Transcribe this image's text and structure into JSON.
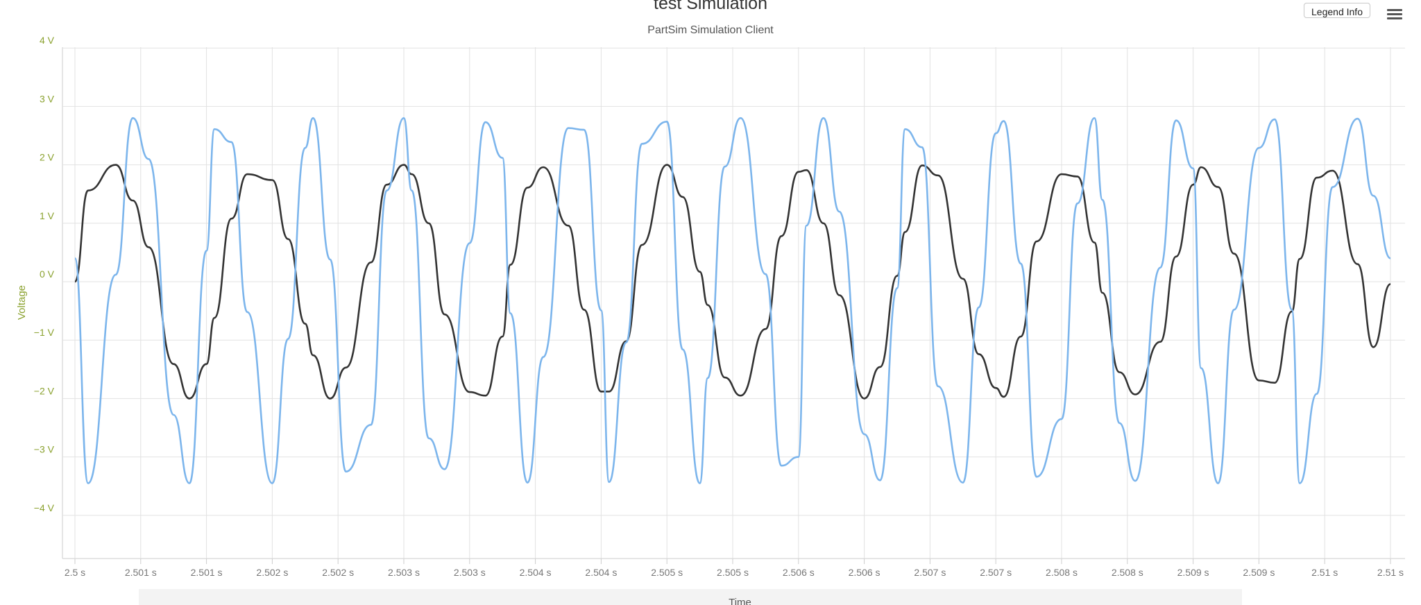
{
  "header": {
    "legend_button_label": "Legend Info",
    "menu_icon": "hamburger-menu-icon"
  },
  "chart_data": {
    "type": "line",
    "title": "test Simulation",
    "subtitle": "PartSim Simulation Client",
    "xlabel": "Time",
    "ylabel": "Voltage",
    "xlim": [
      2.5,
      2.51
    ],
    "ylim": [
      -4.6,
      4
    ],
    "grid": true,
    "y_ticks": [
      {
        "value": 4,
        "label": "4 V"
      },
      {
        "value": 3,
        "label": "3 V"
      },
      {
        "value": 2,
        "label": "2 V"
      },
      {
        "value": 1,
        "label": "1 V"
      },
      {
        "value": 0,
        "label": "0 V"
      },
      {
        "value": -1,
        "label": "−1 V"
      },
      {
        "value": -2,
        "label": "−2 V"
      },
      {
        "value": -3,
        "label": "−3 V"
      },
      {
        "value": -4,
        "label": "−4 V"
      }
    ],
    "x_ticks": [
      {
        "value": 2.5,
        "label": "2.5 s"
      },
      {
        "value": 2.5005,
        "label": "2.501 s"
      },
      {
        "value": 2.501,
        "label": "2.501 s"
      },
      {
        "value": 2.5015,
        "label": "2.502 s"
      },
      {
        "value": 2.502,
        "label": "2.502 s"
      },
      {
        "value": 2.5025,
        "label": "2.503 s"
      },
      {
        "value": 2.503,
        "label": "2.503 s"
      },
      {
        "value": 2.5035,
        "label": "2.504 s"
      },
      {
        "value": 2.504,
        "label": "2.504 s"
      },
      {
        "value": 2.5045,
        "label": "2.505 s"
      },
      {
        "value": 2.505,
        "label": "2.505 s"
      },
      {
        "value": 2.5055,
        "label": "2.506 s"
      },
      {
        "value": 2.506,
        "label": "2.506 s"
      },
      {
        "value": 2.5065,
        "label": "2.507 s"
      },
      {
        "value": 2.507,
        "label": "2.507 s"
      },
      {
        "value": 2.5075,
        "label": "2.508 s"
      },
      {
        "value": 2.508,
        "label": "2.508 s"
      },
      {
        "value": 2.5085,
        "label": "2.509 s"
      },
      {
        "value": 2.509,
        "label": "2.509 s"
      },
      {
        "value": 2.5095,
        "label": "2.51 s"
      },
      {
        "value": 2.51,
        "label": "2.51 s"
      }
    ],
    "series": [
      {
        "color": "#333333",
        "x": [
          2.5,
          2.5001,
          2.50031,
          2.50044,
          2.50056,
          2.50075,
          2.50087,
          2.501,
          2.50106,
          2.50119,
          2.50131,
          2.5015,
          2.50162,
          2.50175,
          2.50181,
          2.50194,
          2.50206,
          2.50225,
          2.50237,
          2.5025,
          2.50256,
          2.50269,
          2.50281,
          2.503,
          2.50312,
          2.50325,
          2.50331,
          2.50344,
          2.50356,
          2.50375,
          2.50387,
          2.504,
          2.50406,
          2.50419,
          2.50431,
          2.5045,
          2.50462,
          2.50475,
          2.50481,
          2.50494,
          2.50506,
          2.50525,
          2.50537,
          2.5055,
          2.50556,
          2.50569,
          2.50581,
          2.506,
          2.50612,
          2.50625,
          2.50631,
          2.50644,
          2.50656,
          2.50675,
          2.50687,
          2.507,
          2.50706,
          2.50719,
          2.50731,
          2.5075,
          2.50762,
          2.50775,
          2.50781,
          2.50794,
          2.50806,
          2.50825,
          2.50837,
          2.5085,
          2.50856,
          2.50869,
          2.50881,
          2.509,
          2.50912,
          2.50925,
          2.50931,
          2.50944,
          2.50956,
          2.50975,
          2.50987,
          2.51
        ],
        "y": [
          0,
          1.56,
          2,
          1.39,
          0.59,
          -1.41,
          -2,
          -1.41,
          -0.62,
          1.08,
          1.84,
          1.74,
          0.73,
          -0.72,
          -1.26,
          -2,
          -1.47,
          0.33,
          1.66,
          2,
          1.84,
          1,
          -0.56,
          -1.89,
          -1.95,
          -0.94,
          0.29,
          1.61,
          1.96,
          0.96,
          -0.48,
          -1.88,
          -1.88,
          -1.02,
          0.63,
          2,
          1.45,
          0.17,
          -0.4,
          -1.64,
          -1.95,
          -0.81,
          0.78,
          1.88,
          1.91,
          1,
          -0.23,
          -2,
          -1.46,
          0.1,
          0.85,
          1.99,
          1.82,
          0.05,
          -1.24,
          -1.82,
          -1.97,
          -0.94,
          0.69,
          1.84,
          1.8,
          0.67,
          -0.19,
          -1.55,
          -1.93,
          -1.03,
          0.43,
          1.66,
          1.96,
          1.62,
          0.48,
          -1.69,
          -1.73,
          -0.51,
          0.39,
          1.78,
          1.9,
          0.3,
          -1.12,
          -0.04
        ]
      },
      {
        "color": "#7cb5ec",
        "x": [
          2.5,
          2.5001,
          2.50031,
          2.50044,
          2.50056,
          2.50075,
          2.50087,
          2.501,
          2.50106,
          2.50119,
          2.50131,
          2.5015,
          2.50162,
          2.50175,
          2.50181,
          2.50194,
          2.50206,
          2.50225,
          2.50237,
          2.5025,
          2.50256,
          2.50269,
          2.50281,
          2.503,
          2.50312,
          2.50325,
          2.50331,
          2.50344,
          2.50356,
          2.50375,
          2.50387,
          2.504,
          2.50406,
          2.50419,
          2.50431,
          2.5045,
          2.50462,
          2.50475,
          2.50481,
          2.50494,
          2.50506,
          2.50525,
          2.50537,
          2.5055,
          2.50556,
          2.50569,
          2.50581,
          2.506,
          2.50612,
          2.50625,
          2.50631,
          2.50644,
          2.50656,
          2.50675,
          2.50687,
          2.507,
          2.50706,
          2.50719,
          2.50731,
          2.5075,
          2.50762,
          2.50775,
          2.50781,
          2.50794,
          2.50806,
          2.50825,
          2.50837,
          2.5085,
          2.50856,
          2.50869,
          2.50881,
          2.509,
          2.50912,
          2.50925,
          2.50931,
          2.50944,
          2.50956,
          2.50975,
          2.50987,
          2.51
        ],
        "y": [
          0.4,
          -3.45,
          0.12,
          2.8,
          2.1,
          -2.28,
          -3.45,
          0.53,
          2.61,
          2.39,
          -0.52,
          -3.45,
          -0.98,
          2.29,
          2.8,
          0.38,
          -3.25,
          -2.45,
          1.56,
          2.8,
          1.56,
          -2.68,
          -3.21,
          0.66,
          2.73,
          2.12,
          -0.54,
          -3.44,
          -1.29,
          2.63,
          2.6,
          -0.49,
          -3.43,
          -1.04,
          2.36,
          2.74,
          -1.16,
          -3.45,
          -1.65,
          1.97,
          2.8,
          0.13,
          -3.15,
          -3.0,
          0.96,
          2.8,
          1.2,
          -2.61,
          -3.4,
          -0.11,
          2.61,
          2.3,
          -1.79,
          -3.44,
          -0.44,
          2.54,
          2.75,
          0.31,
          -3.34,
          -2.35,
          1.34,
          2.8,
          1.4,
          -2.42,
          -3.41,
          0.24,
          2.76,
          1.94,
          -1.48,
          -3.45,
          -0.48,
          2.29,
          2.78,
          -0.48,
          -3.45,
          -1.92,
          1.62,
          2.79,
          1.47,
          0.4
        ]
      }
    ]
  }
}
